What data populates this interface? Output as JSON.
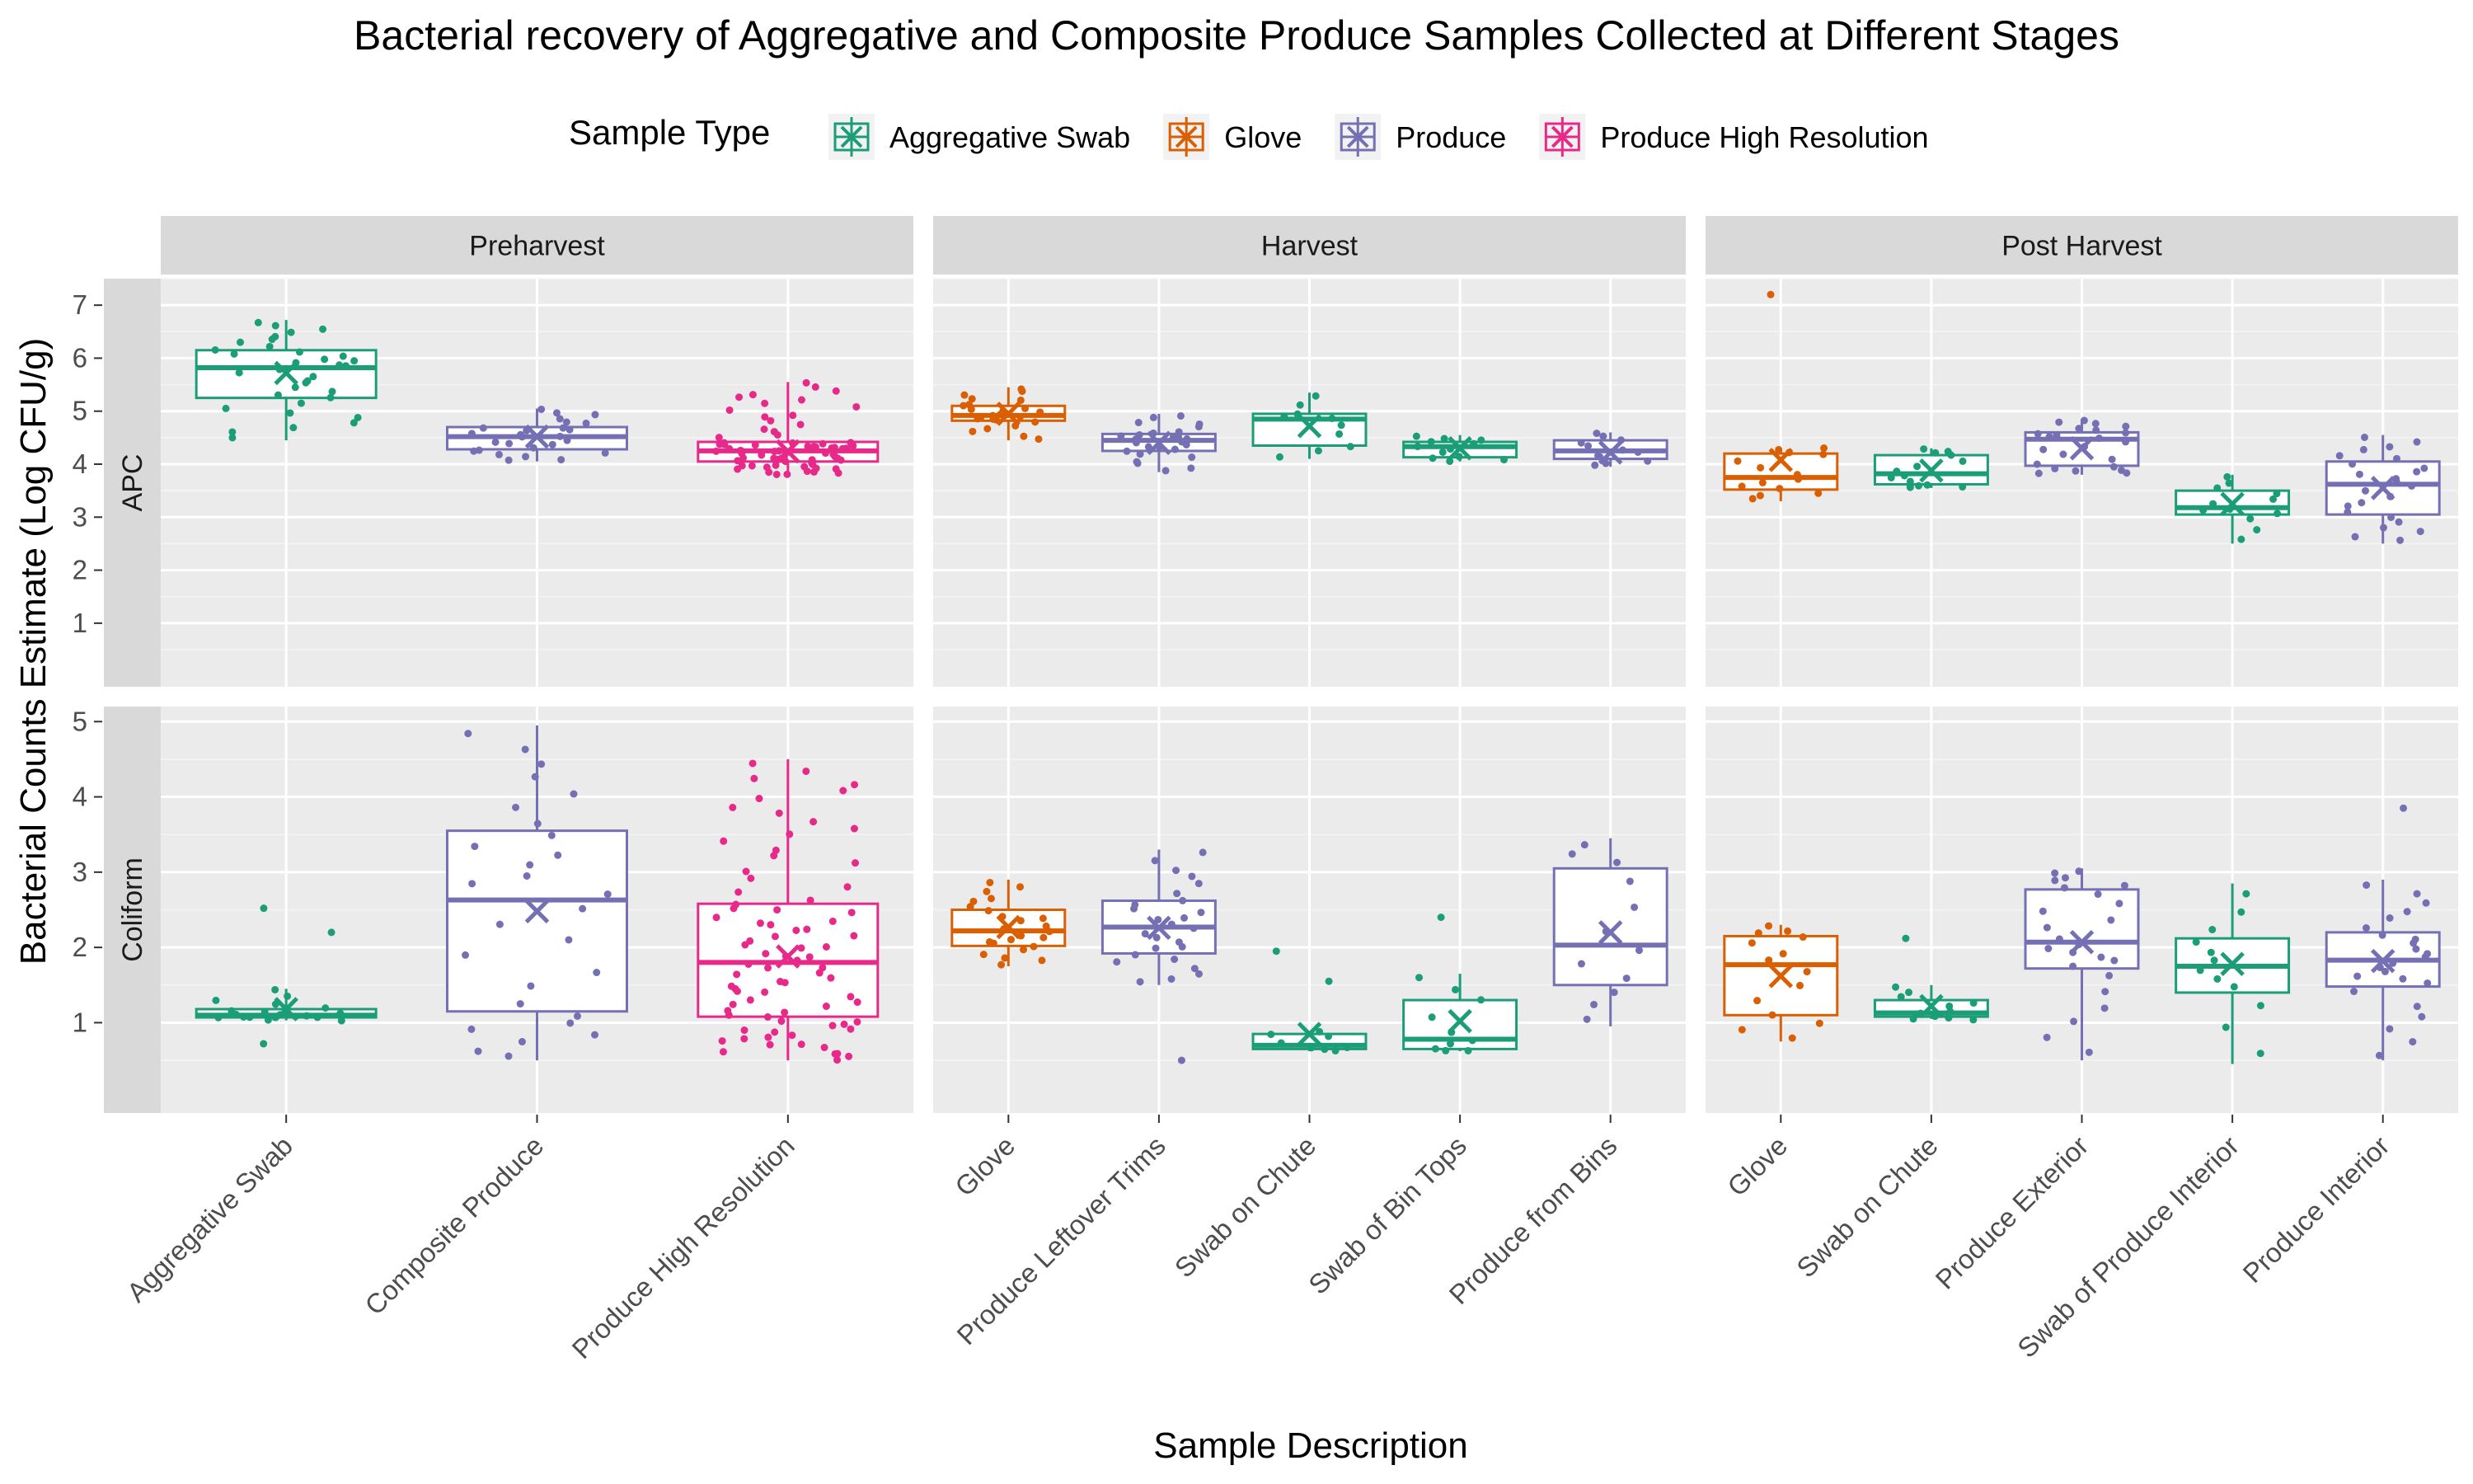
{
  "chart_data": {
    "type": "box",
    "title": "Bacterial recovery of Aggregative and Composite Produce Samples Collected at Different Stages",
    "xlabel": "Sample Description",
    "ylabel": "Bacterial Counts Estimate (Log CFU/g)",
    "legend": {
      "title": "Sample Type",
      "position": "top",
      "entries": [
        {
          "name": "Aggregative Swab",
          "color": "#1B9E77"
        },
        {
          "name": "Glove",
          "color": "#D95F02"
        },
        {
          "name": "Produce",
          "color": "#7570B3"
        },
        {
          "name": "Produce High Resolution",
          "color": "#E7298A"
        }
      ]
    },
    "facet_columns": [
      "Preharvest",
      "Harvest",
      "Post Harvest"
    ],
    "facet_rows": [
      "APC",
      "Coliform"
    ],
    "row_yaxis": {
      "APC": {
        "ylim": [
          -0.2,
          7.5
        ],
        "ticks": [
          1,
          2,
          3,
          4,
          5,
          6,
          7
        ]
      },
      "Coliform": {
        "ylim": [
          -0.2,
          5.2
        ],
        "ticks": [
          1,
          2,
          3,
          4,
          5
        ]
      }
    },
    "grid": true,
    "columns": [
      {
        "stage": "Preharvest",
        "categories": [
          "Aggregative Swab",
          "Composite Produce",
          "Produce High Resolution"
        ],
        "APC": [
          {
            "sample_type": "Aggregative Swab",
            "min": 4.45,
            "q1": 5.25,
            "median": 5.82,
            "q3": 6.15,
            "max": 6.72,
            "mean": 5.72,
            "n": 34
          },
          {
            "sample_type": "Produce",
            "min": 4.05,
            "q1": 4.28,
            "median": 4.52,
            "q3": 4.7,
            "max": 5.05,
            "mean": 4.52,
            "n": 26
          },
          {
            "sample_type": "Produce High Resolution",
            "min": 3.8,
            "q1": 4.05,
            "median": 4.25,
            "q3": 4.42,
            "max": 5.55,
            "mean": 4.24,
            "n": 70
          }
        ],
        "Coliform": [
          {
            "sample_type": "Aggregative Swab",
            "min": 1.03,
            "q1": 1.07,
            "median": 1.1,
            "q3": 1.18,
            "max": 1.45,
            "mean": 1.18,
            "n": 20
          },
          {
            "sample_type": "Produce",
            "min": 0.5,
            "q1": 1.15,
            "median": 2.63,
            "q3": 3.55,
            "max": 4.95,
            "mean": 2.48,
            "n": 28
          },
          {
            "sample_type": "Produce High Resolution",
            "min": 0.5,
            "q1": 1.08,
            "median": 1.8,
            "q3": 2.58,
            "max": 4.5,
            "mean": 1.88,
            "n": 80
          }
        ]
      },
      {
        "stage": "Harvest",
        "categories": [
          "Glove",
          "Produce Leftover Trims",
          "Swab on Chute",
          "Swab of Bin Tops",
          "Produce from Bins"
        ],
        "APC": [
          {
            "sample_type": "Glove",
            "min": 4.45,
            "q1": 4.82,
            "median": 4.92,
            "q3": 5.1,
            "max": 5.45,
            "mean": 4.95,
            "n": 24
          },
          {
            "sample_type": "Produce",
            "min": 3.85,
            "q1": 4.25,
            "median": 4.45,
            "q3": 4.57,
            "max": 4.95,
            "mean": 4.4,
            "n": 26
          },
          {
            "sample_type": "Aggregative Swab",
            "min": 4.1,
            "q1": 4.35,
            "median": 4.85,
            "q3": 4.95,
            "max": 5.35,
            "mean": 4.72,
            "n": 10
          },
          {
            "sample_type": "Aggregative Swab",
            "min": 4.05,
            "q1": 4.13,
            "median": 4.33,
            "q3": 4.42,
            "max": 4.55,
            "mean": 4.3,
            "n": 12
          },
          {
            "sample_type": "Produce",
            "min": 3.95,
            "q1": 4.1,
            "median": 4.25,
            "q3": 4.45,
            "max": 4.6,
            "mean": 4.22,
            "n": 12
          }
        ],
        "Coliform": [
          {
            "sample_type": "Glove",
            "min": 1.75,
            "q1": 2.02,
            "median": 2.22,
            "q3": 2.5,
            "max": 2.9,
            "mean": 2.27,
            "n": 24
          },
          {
            "sample_type": "Produce",
            "min": 1.5,
            "q1": 1.92,
            "median": 2.27,
            "q3": 2.62,
            "max": 3.3,
            "mean": 2.26,
            "n": 26
          },
          {
            "sample_type": "Aggregative Swab",
            "min": 0.62,
            "q1": 0.65,
            "median": 0.7,
            "q3": 0.85,
            "max": 0.88,
            "mean": 0.85,
            "n": 8
          },
          {
            "sample_type": "Aggregative Swab",
            "min": 0.62,
            "q1": 0.65,
            "median": 0.78,
            "q3": 1.3,
            "max": 1.65,
            "mean": 1.02,
            "n": 10
          },
          {
            "sample_type": "Produce",
            "min": 0.95,
            "q1": 1.5,
            "median": 2.03,
            "q3": 3.05,
            "max": 3.45,
            "mean": 2.2,
            "n": 12
          }
        ]
      },
      {
        "stage": "Post Harvest",
        "categories": [
          "Glove",
          "Swab on Chute",
          "Produce Exterior",
          "Swab of Produce Interior",
          "Produce Interior"
        ],
        "APC": [
          {
            "sample_type": "Glove",
            "min": 3.3,
            "q1": 3.52,
            "median": 3.75,
            "q3": 4.2,
            "max": 4.3,
            "mean": 4.08,
            "n": 14
          },
          {
            "sample_type": "Aggregative Swab",
            "min": 3.55,
            "q1": 3.62,
            "median": 3.82,
            "q3": 4.17,
            "max": 4.3,
            "mean": 3.88,
            "n": 14
          },
          {
            "sample_type": "Produce",
            "min": 3.8,
            "q1": 3.97,
            "median": 4.47,
            "q3": 4.6,
            "max": 4.85,
            "mean": 4.3,
            "n": 24
          },
          {
            "sample_type": "Aggregative Swab",
            "min": 2.5,
            "q1": 3.05,
            "median": 3.18,
            "q3": 3.5,
            "max": 3.8,
            "mean": 3.25,
            "n": 12
          },
          {
            "sample_type": "Produce",
            "min": 2.5,
            "q1": 3.05,
            "median": 3.62,
            "q3": 4.05,
            "max": 4.55,
            "mean": 3.55,
            "n": 24
          }
        ],
        "Coliform": [
          {
            "sample_type": "Glove",
            "min": 0.75,
            "q1": 1.1,
            "median": 1.77,
            "q3": 2.15,
            "max": 2.3,
            "mean": 1.62,
            "n": 14
          },
          {
            "sample_type": "Aggregative Swab",
            "min": 1.05,
            "q1": 1.08,
            "median": 1.13,
            "q3": 1.3,
            "max": 1.5,
            "mean": 1.22,
            "n": 12
          },
          {
            "sample_type": "Produce",
            "min": 0.5,
            "q1": 1.72,
            "median": 2.07,
            "q3": 2.77,
            "max": 3.05,
            "mean": 2.07,
            "n": 24
          },
          {
            "sample_type": "Aggregative Swab",
            "min": 0.45,
            "q1": 1.4,
            "median": 1.75,
            "q3": 2.12,
            "max": 2.85,
            "mean": 1.78,
            "n": 12
          },
          {
            "sample_type": "Produce",
            "min": 0.5,
            "q1": 1.48,
            "median": 1.83,
            "q3": 2.2,
            "max": 2.9,
            "mean": 1.82,
            "n": 24
          }
        ]
      }
    ],
    "outliers": [
      {
        "column": 2,
        "row": "APC",
        "box": 0,
        "value": 7.2
      },
      {
        "column": 0,
        "row": "Coliform",
        "box": 0,
        "value": 2.2
      },
      {
        "column": 0,
        "row": "Coliform",
        "box": 0,
        "value": 2.52
      },
      {
        "column": 0,
        "row": "Coliform",
        "box": 0,
        "value": 0.72
      },
      {
        "column": 1,
        "row": "Coliform",
        "box": 1,
        "value": 0.5
      },
      {
        "column": 1,
        "row": "Coliform",
        "box": 2,
        "value": 1.95
      },
      {
        "column": 1,
        "row": "Coliform",
        "box": 2,
        "value": 1.55
      },
      {
        "column": 1,
        "row": "Coliform",
        "box": 3,
        "value": 2.4
      },
      {
        "column": 2,
        "row": "Coliform",
        "box": 1,
        "value": 2.12
      },
      {
        "column": 2,
        "row": "Coliform",
        "box": 4,
        "value": 3.85
      }
    ]
  }
}
